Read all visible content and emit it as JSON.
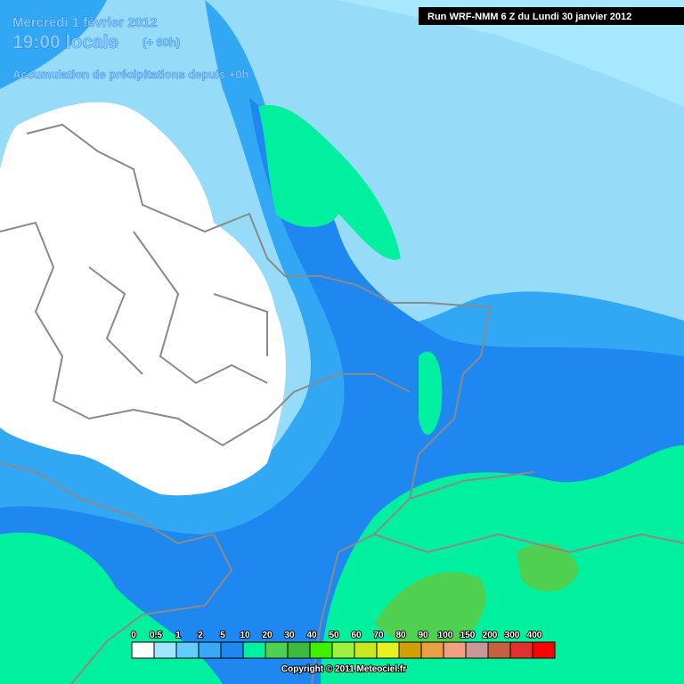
{
  "header": {
    "date": "Mercredi 1 février 2012",
    "time": "19:00 locale",
    "lead": "(+ 60h)",
    "subtitle": "Accumulation de précipitations depuis +0h",
    "run": "Run WRF-NMM 6 Z du Lundi 30 janvier 2012"
  },
  "legend": {
    "levels": [
      0,
      0.5,
      1,
      2,
      5,
      10,
      20,
      30,
      40,
      50,
      60,
      70,
      80,
      90,
      100,
      150,
      200,
      300,
      400
    ],
    "colors": [
      "#ffffff",
      "#a0e6ff",
      "#64ccff",
      "#3aa8f5",
      "#1e88f0",
      "#00f0a0",
      "#50d050",
      "#3cba3c",
      "#40f000",
      "#a0f040",
      "#c8e820",
      "#e6f020",
      "#d0a000",
      "#e8a040",
      "#f0a080",
      "#c89898",
      "#c86040",
      "#e03030",
      "#ff0000"
    ]
  },
  "copyright": "Copyright © 2011 Meteociel.fr"
}
